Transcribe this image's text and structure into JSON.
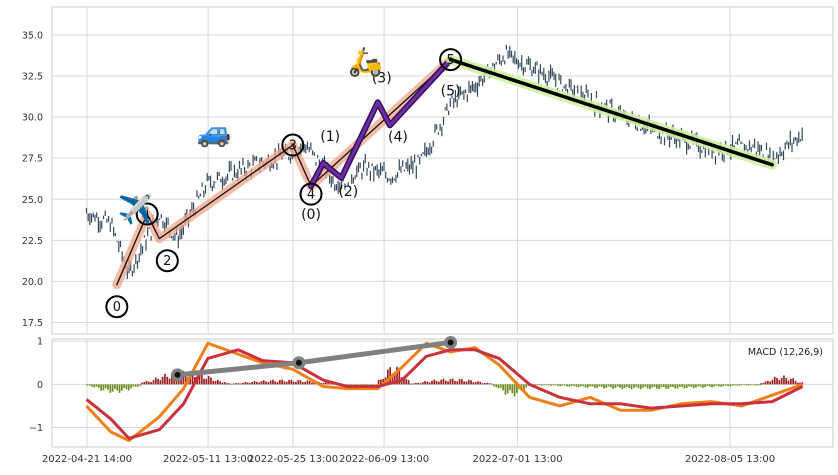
{
  "chart_data": [
    {
      "type": "line",
      "panel": "price",
      "ylim": [
        16.8,
        36.7
      ],
      "yticks": [
        "35.0",
        "32.5",
        "30.0",
        "27.5",
        "25.0",
        "22.5",
        "20.0",
        "17.5"
      ],
      "grid": true,
      "price_path": {
        "x": [
          "2022-04-21",
          "2022-04-25",
          "2022-04-28",
          "2022-05-03",
          "2022-05-06",
          "2022-05-11",
          "2022-05-16",
          "2022-05-19",
          "2022-05-24",
          "2022-05-27",
          "2022-06-01",
          "2022-06-06",
          "2022-06-10",
          "2022-06-15",
          "2022-06-20",
          "2022-06-24",
          "2022-06-29",
          "2022-07-05",
          "2022-07-12",
          "2022-07-19",
          "2022-07-26",
          "2022-08-02",
          "2022-08-09",
          "2022-08-12",
          "2022-08-17"
        ],
        "y": [
          24.2,
          23.5,
          20.5,
          24.1,
          22.6,
          26.0,
          26.7,
          27.1,
          27.7,
          28.3,
          26.0,
          26.9,
          26.4,
          27.2,
          30.8,
          31.9,
          33.8,
          32.7,
          31.2,
          29.9,
          28.9,
          28.0,
          28.2,
          27.5,
          29.0
        ]
      },
      "waves": [
        {
          "style": "black_on_salmon",
          "points": [
            {
              "x": "2022-04-26",
              "y": 19.8,
              "label": "0"
            },
            {
              "x": "2022-05-01",
              "y": 24.1,
              "label": "1"
            },
            {
              "x": "2022-05-03",
              "y": 22.6,
              "label": "2"
            },
            {
              "x": "2022-05-25",
              "y": 28.3,
              "label": "3"
            },
            {
              "x": "2022-05-28",
              "y": 25.8,
              "label": "4"
            },
            {
              "x": "2022-06-20",
              "y": 33.5,
              "label": "5"
            }
          ]
        },
        {
          "style": "purple",
          "points": [
            {
              "x": "2022-05-28",
              "y": 25.8,
              "label": "(0)"
            },
            {
              "x": "2022-05-30",
              "y": 27.2,
              "label": "(1)"
            },
            {
              "x": "2022-06-02",
              "y": 26.3,
              "label": "(2)"
            },
            {
              "x": "2022-06-08",
              "y": 30.9,
              "label": "(3)"
            },
            {
              "x": "2022-06-10",
              "y": 29.5,
              "label": "(4)"
            },
            {
              "x": "2022-06-20",
              "y": 33.5,
              "label": "(5)"
            }
          ]
        },
        {
          "style": "black_on_lightgreen",
          "points": [
            {
              "x": "2022-06-20",
              "y": 33.5
            },
            {
              "x": "2022-08-12",
              "y": 27.1
            }
          ]
        }
      ],
      "emojis": [
        {
          "icon": "airplane",
          "glyph": "✈️",
          "x": "2022-04-29",
          "y": 23.8
        },
        {
          "icon": "car",
          "glyph": "🚙",
          "x": "2022-05-12",
          "y": 28.5
        },
        {
          "icon": "scooter",
          "glyph": "🛵",
          "x": "2022-06-06",
          "y": 32.8
        }
      ]
    },
    {
      "type": "bar",
      "panel": "macd",
      "title": "MACD (12,26,9)",
      "ylim": [
        -1.45,
        1.05
      ],
      "yticks": [
        "1",
        "0",
        "−1"
      ],
      "grid": true,
      "x": [
        "2022-04-21",
        "2022-04-25",
        "2022-04-28",
        "2022-05-03",
        "2022-05-07",
        "2022-05-11",
        "2022-05-16",
        "2022-05-20",
        "2022-05-25",
        "2022-05-30",
        "2022-06-03",
        "2022-06-08",
        "2022-06-12",
        "2022-06-16",
        "2022-06-20",
        "2022-06-24",
        "2022-06-28",
        "2022-07-03",
        "2022-07-08",
        "2022-07-13",
        "2022-07-18",
        "2022-07-23",
        "2022-07-28",
        "2022-08-02",
        "2022-08-07",
        "2022-08-12",
        "2022-08-17"
      ],
      "series": [
        {
          "role": "macd",
          "color": "#f07f17",
          "values": [
            -0.5,
            -1.1,
            -1.3,
            -0.75,
            -0.1,
            0.95,
            0.7,
            0.5,
            0.35,
            -0.05,
            -0.1,
            -0.1,
            0.4,
            0.95,
            0.75,
            0.85,
            0.45,
            -0.3,
            -0.5,
            -0.3,
            -0.6,
            -0.6,
            -0.45,
            -0.4,
            -0.5,
            -0.25,
            0.0
          ]
        },
        {
          "role": "signal",
          "color": "#c9323d",
          "values": [
            -0.35,
            -0.8,
            -1.25,
            -1.05,
            -0.45,
            0.6,
            0.8,
            0.55,
            0.5,
            0.1,
            -0.05,
            -0.05,
            0.1,
            0.65,
            0.8,
            0.8,
            0.6,
            0.0,
            -0.3,
            -0.45,
            -0.45,
            -0.55,
            -0.5,
            -0.45,
            -0.45,
            -0.4,
            -0.05
          ]
        }
      ],
      "histogram": {
        "positive_color": "#9b1f1f",
        "negative_color": "#6b8e1e",
        "bars": [
          {
            "x": "2022-04-21",
            "x_end": "2022-04-30",
            "value": -0.18
          },
          {
            "x": "2022-04-30",
            "x_end": "2022-05-14",
            "value": 0.28
          },
          {
            "x": "2022-05-14",
            "x_end": "2022-06-02",
            "value": 0.1
          },
          {
            "x": "2022-06-02",
            "x_end": "2022-06-08",
            "value": -0.05
          },
          {
            "x": "2022-06-08",
            "x_end": "2022-06-13",
            "value": 0.4
          },
          {
            "x": "2022-06-13",
            "x_end": "2022-06-27",
            "value": 0.12
          },
          {
            "x": "2022-06-27",
            "x_end": "2022-07-03",
            "value": -0.25
          },
          {
            "x": "2022-07-03",
            "x_end": "2022-08-10",
            "value": -0.1
          },
          {
            "x": "2022-08-10",
            "x_end": "2022-08-17",
            "value": 0.18
          }
        ]
      },
      "divergence_line": {
        "color": "#808080",
        "points": [
          {
            "x": "2022-05-06",
            "y": 0.22
          },
          {
            "x": "2022-05-26",
            "y": 0.5
          },
          {
            "x": "2022-06-20",
            "y": 0.97
          }
        ]
      }
    }
  ],
  "x_axis": {
    "ticks": [
      "2022-04-21 14:00",
      "2022-05-11 13:00",
      "2022-05-25 13:00",
      "2022-06-09 13:00",
      "2022-07-01 13:00",
      "2022-08-05 13:00"
    ]
  }
}
